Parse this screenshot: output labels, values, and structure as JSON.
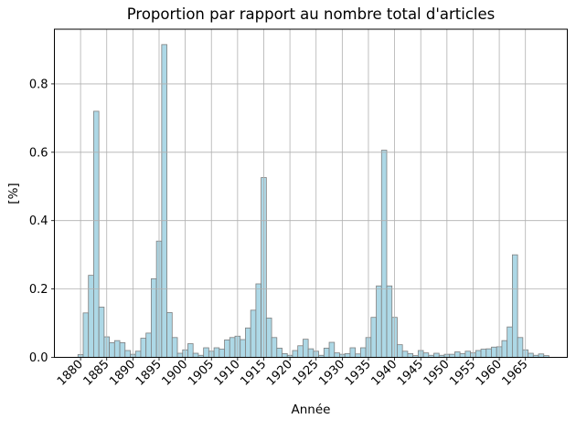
{
  "figure": {
    "title": "Proportion par rapport au nombre total d'articles",
    "xlabel": "Année",
    "ylabel": "[%]"
  },
  "chart_data": {
    "type": "bar",
    "title": "Proportion par rapport au nombre total d'articles",
    "xlabel": "Année",
    "ylabel": "[%]",
    "grid": true,
    "legend": null,
    "bar_width_years": 1,
    "xlim": [
      1875,
      1973
    ],
    "ylim": [
      0,
      0.96
    ],
    "xticks": [
      1880,
      1885,
      1890,
      1895,
      1900,
      1905,
      1910,
      1915,
      1920,
      1925,
      1930,
      1935,
      1940,
      1945,
      1950,
      1955,
      1960,
      1965
    ],
    "yticks": [
      0.0,
      0.2,
      0.4,
      0.6,
      0.8
    ],
    "ytick_labels": [
      "0.0",
      "0.2",
      "0.4",
      "0.6",
      "0.8"
    ],
    "xtick_label_rotation_deg": 45,
    "bar_fill_color": "#add8e6",
    "bar_edge_color": "#7f7f7f",
    "grid_color": "#b0b0b0",
    "axis_color": "#000000",
    "x": [
      1880,
      1881,
      1882,
      1883,
      1884,
      1885,
      1886,
      1887,
      1888,
      1889,
      1890,
      1891,
      1892,
      1893,
      1894,
      1895,
      1896,
      1897,
      1898,
      1899,
      1900,
      1901,
      1902,
      1903,
      1904,
      1905,
      1906,
      1907,
      1908,
      1909,
      1910,
      1911,
      1912,
      1913,
      1914,
      1915,
      1916,
      1917,
      1918,
      1919,
      1920,
      1921,
      1922,
      1923,
      1924,
      1925,
      1926,
      1927,
      1928,
      1929,
      1930,
      1931,
      1932,
      1933,
      1934,
      1935,
      1936,
      1937,
      1938,
      1939,
      1940,
      1941,
      1942,
      1943,
      1944,
      1945,
      1946,
      1947,
      1948,
      1949,
      1950,
      1951,
      1952,
      1953,
      1954,
      1955,
      1956,
      1957,
      1958,
      1959,
      1960,
      1961,
      1962,
      1963,
      1964,
      1965,
      1966,
      1967,
      1968,
      1969
    ],
    "values": [
      0.008,
      0.13,
      0.24,
      0.72,
      0.147,
      0.06,
      0.043,
      0.049,
      0.043,
      0.02,
      0.009,
      0.018,
      0.056,
      0.071,
      0.23,
      0.34,
      0.915,
      0.131,
      0.058,
      0.012,
      0.022,
      0.04,
      0.012,
      0.006,
      0.028,
      0.018,
      0.028,
      0.024,
      0.051,
      0.058,
      0.062,
      0.052,
      0.086,
      0.138,
      0.215,
      0.526,
      0.115,
      0.058,
      0.027,
      0.011,
      0.006,
      0.02,
      0.034,
      0.053,
      0.025,
      0.018,
      0.006,
      0.027,
      0.044,
      0.013,
      0.009,
      0.011,
      0.028,
      0.01,
      0.028,
      0.058,
      0.117,
      0.209,
      0.606,
      0.209,
      0.117,
      0.037,
      0.018,
      0.011,
      0.005,
      0.02,
      0.013,
      0.006,
      0.012,
      0.006,
      0.009,
      0.009,
      0.016,
      0.011,
      0.018,
      0.013,
      0.02,
      0.024,
      0.025,
      0.03,
      0.031,
      0.049,
      0.089,
      0.3,
      0.058,
      0.022,
      0.012,
      0.006,
      0.01,
      0.005
    ]
  }
}
